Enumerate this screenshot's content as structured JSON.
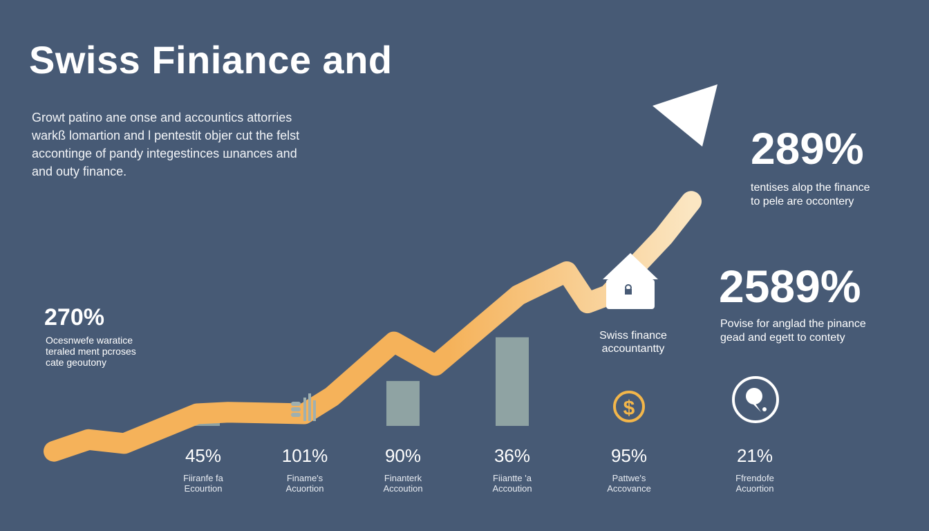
{
  "title": "Swiss Finiance and",
  "intro_lines": [
    "Growt patino ane onse and accountics attorries",
    "warkß lomartion and l pentestit objer cut the felst",
    "accontinge of pandy integestinces шnances and",
    "and outy finance."
  ],
  "stats": {
    "top_right": {
      "value": "289%",
      "caption": [
        "tentises alop the finance",
        "to pele are occontery"
      ]
    },
    "mid_right": {
      "value": "2589%",
      "caption": [
        "Povise for anglad the pinance",
        "gead and egett to contety"
      ]
    },
    "left": {
      "value": "270%",
      "caption": [
        "Ocesnwefe waratice",
        "teraled ment pcroses",
        "cate geoutony"
      ]
    }
  },
  "house_caption": [
    "Swiss finance",
    "accountantty"
  ],
  "bottom_items": [
    {
      "value": "45%",
      "caption": [
        "Fiiranfe fa",
        "Ecourtion"
      ]
    },
    {
      "value": "101%",
      "caption": [
        "Finame's",
        "Acuortion"
      ]
    },
    {
      "value": "90%",
      "caption": [
        "Finanterk",
        "Accoution"
      ]
    },
    {
      "value": "36%",
      "caption": [
        "Fiiantte 'a",
        "Accoution"
      ]
    },
    {
      "value": "95%",
      "caption": [
        "Pattwe's",
        "Accovance"
      ]
    },
    {
      "value": "21%",
      "caption": [
        "Ffrendofe",
        "Acuortion"
      ]
    }
  ],
  "icons": [
    "chart-icon",
    "dollar-coin-icon",
    "lightbulb-icon",
    "house-lock-icon"
  ],
  "colors": {
    "background": "#475a75",
    "trend": "#f5b25a",
    "trend_tip": "#fbe6c2",
    "arrowhead": "#ffffff",
    "bars": "#8fa3a3",
    "text": "#ffffff",
    "accent_icon": "#f3b64a"
  },
  "chart_data": {
    "type": "bar",
    "title": "",
    "categories": [
      "45%",
      "101%",
      "90%",
      "36%"
    ],
    "values": [
      50,
      0,
      100,
      156
    ],
    "trend_line": [
      10,
      25,
      20,
      58,
      60,
      58,
      80,
      150,
      120,
      210,
      240,
      200,
      210,
      285,
      330
    ],
    "ylim": [
      0,
      340
    ],
    "grid": false,
    "legend": "none"
  }
}
